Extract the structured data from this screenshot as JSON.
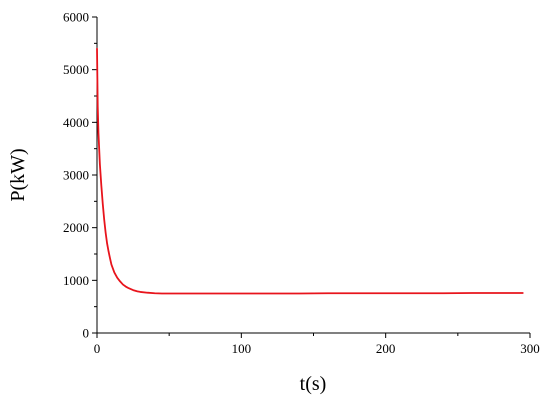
{
  "chart_data": {
    "type": "line",
    "title": "",
    "xlabel": "t(s)",
    "ylabel": "P(kW)",
    "xlim": [
      0,
      300
    ],
    "ylim": [
      0,
      6000
    ],
    "xticks": [
      0,
      100,
      200,
      300
    ],
    "yticks": [
      0,
      1000,
      2000,
      3000,
      4000,
      5000,
      6000
    ],
    "x_minor_step": 50,
    "y_minor_step": 500,
    "grid": false,
    "legend": "none",
    "series": [
      {
        "color": "#e8141c",
        "x": [
          0,
          0.5,
          1,
          2,
          3,
          4,
          5,
          6,
          7,
          8,
          9,
          10,
          12,
          14,
          16,
          18,
          20,
          22,
          25,
          28,
          30,
          35,
          40,
          45,
          50,
          60,
          70,
          80,
          100,
          120,
          140,
          160,
          180,
          200,
          220,
          240,
          260,
          280,
          295
        ],
        "y": [
          5400,
          4300,
          3800,
          3200,
          2800,
          2450,
          2150,
          1900,
          1700,
          1550,
          1420,
          1300,
          1150,
          1050,
          980,
          920,
          880,
          850,
          815,
          790,
          780,
          765,
          755,
          750,
          750,
          750,
          750,
          750,
          750,
          750,
          750,
          755,
          755,
          755,
          755,
          755,
          760,
          760,
          760
        ]
      }
    ]
  }
}
